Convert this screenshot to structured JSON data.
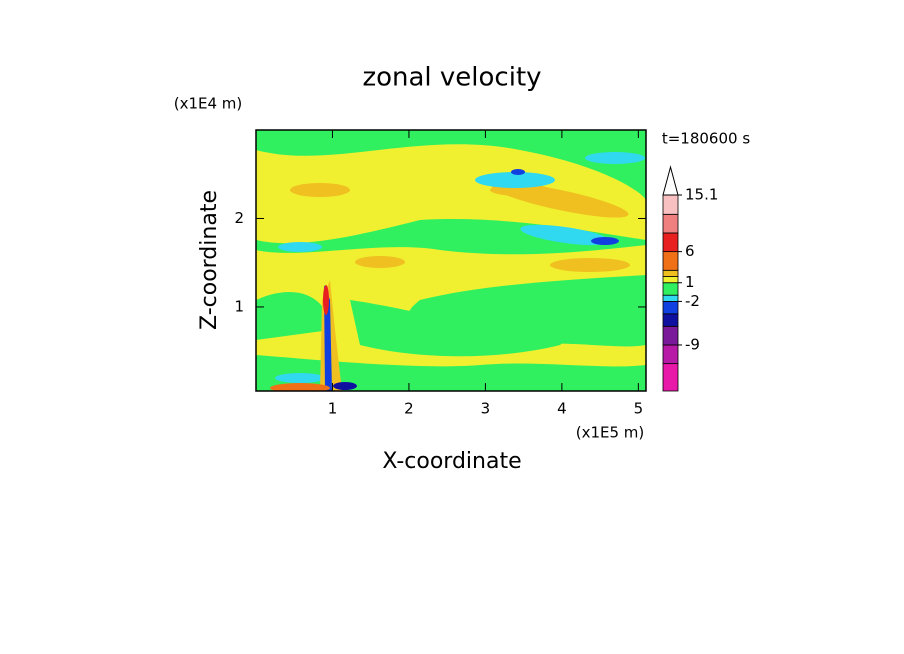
{
  "chart_data": {
    "type": "contour",
    "title": "zonal velocity",
    "xlabel": "X-coordinate",
    "ylabel": "Z-coordinate",
    "xunit": "(x1E5 m)",
    "yunit": "(x1E4 m)",
    "annotation": "t=180600 s",
    "xlim": [
      0,
      5.1
    ],
    "ylim": [
      0.05,
      3.0
    ],
    "xticks": [
      1,
      2,
      3,
      4,
      5
    ],
    "yticks": [
      1,
      2
    ],
    "colorbar": {
      "bounds": [
        -16.4,
        -12,
        -9,
        -6,
        -4,
        -2,
        -1,
        1,
        2,
        3,
        6,
        9,
        12,
        15.1
      ],
      "colors": [
        "#e818a8",
        "#b81aa8",
        "#7a1a9a",
        "#1010a0",
        "#1040e0",
        "#30d8f0",
        "#30f060",
        "#f0f030",
        "#f0c020",
        "#f07018",
        "#e82020",
        "#f08080",
        "#f8c0c0"
      ],
      "ticks": [
        15.1,
        6,
        1,
        -2,
        -9
      ],
      "extend": "max"
    }
  }
}
